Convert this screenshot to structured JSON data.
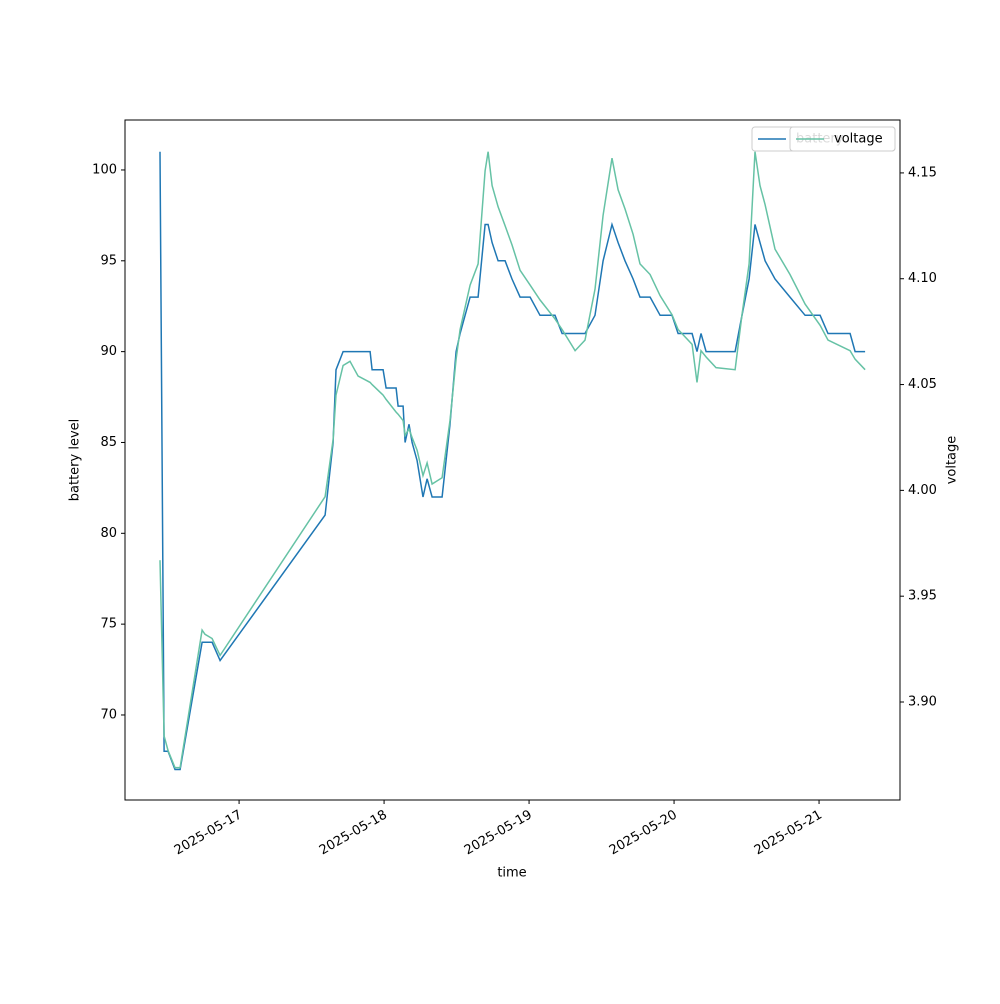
{
  "chart_data": {
    "type": "line",
    "x_label": "time",
    "y_label": "battery level",
    "y2_label": "voltage",
    "x": [
      "2025-05-16 10:55",
      "2025-05-16 11:35",
      "2025-05-16 12:15",
      "2025-05-16 13:24",
      "2025-05-16 14:14",
      "2025-05-16 17:53",
      "2025-05-16 18:22",
      "2025-05-16 19:32",
      "2025-05-16 20:51",
      "2025-05-17 14:14",
      "2025-05-17 15:34",
      "2025-05-17 16:03",
      "2025-05-17 17:13",
      "2025-05-17 18:22",
      "2025-05-17 19:42",
      "2025-05-17 21:41",
      "2025-05-17 22:01",
      "2025-05-17 23:50",
      "2025-05-18 00:20",
      "2025-05-18 01:59",
      "2025-05-18 02:19",
      "2025-05-18 03:09",
      "2025-05-18 03:29",
      "2025-05-18 04:08",
      "2025-05-18 04:38",
      "2025-05-18 05:28",
      "2025-05-18 06:27",
      "2025-05-18 07:07",
      "2025-05-18 07:57",
      "2025-05-18 09:36",
      "2025-05-18 10:55",
      "2025-05-18 11:55",
      "2025-05-18 12:35",
      "2025-05-18 14:14",
      "2025-05-18 15:34",
      "2025-05-18 16:43",
      "2025-05-18 17:13",
      "2025-05-18 17:53",
      "2025-05-18 18:52",
      "2025-05-18 20:02",
      "2025-05-18 21:11",
      "2025-05-18 22:31",
      "2025-05-19 00:10",
      "2025-05-19 01:49",
      "2025-05-19 04:18",
      "2025-05-19 05:28",
      "2025-05-19 07:37",
      "2025-05-19 09:16",
      "2025-05-19 10:55",
      "2025-05-19 12:15",
      "2025-05-19 13:44",
      "2025-05-19 14:44",
      "2025-05-19 15:53",
      "2025-05-19 17:13",
      "2025-05-19 18:22",
      "2025-05-19 20:02",
      "2025-05-19 21:41",
      "2025-05-19 23:40",
      "2025-05-20 00:40",
      "2025-05-20 02:59",
      "2025-05-20 03:48",
      "2025-05-20 04:28",
      "2025-05-20 05:18",
      "2025-05-20 06:57",
      "2025-05-20 10:06",
      "2025-05-20 11:15",
      "2025-05-20 12:25",
      "2025-05-20 13:24",
      "2025-05-20 14:14",
      "2025-05-20 15:04",
      "2025-05-20 16:43",
      "2025-05-20 19:12",
      "2025-05-20 21:41",
      "2025-05-21 00:10",
      "2025-05-21 01:29",
      "2025-05-21 05:08",
      "2025-05-21 05:58",
      "2025-05-21 07:37"
    ],
    "series": [
      {
        "name": "battery",
        "color": "#1f77b4",
        "values": [
          101,
          68,
          68,
          67,
          67,
          74,
          74,
          74,
          73,
          81,
          85,
          89,
          90,
          90,
          90,
          90,
          89,
          89,
          88,
          88,
          87,
          87,
          85,
          86,
          85,
          84,
          82,
          83,
          82,
          82,
          86,
          90,
          91,
          93,
          93,
          97,
          97,
          96,
          95,
          95,
          94,
          93,
          93,
          92,
          92,
          91,
          91,
          91,
          92,
          95,
          97,
          96,
          95,
          94,
          93,
          93,
          92,
          92,
          91,
          91,
          90,
          91,
          90,
          90,
          90,
          92,
          94,
          97,
          96,
          95,
          94,
          93,
          92,
          92,
          91,
          91,
          90,
          90
        ]
      },
      {
        "name": "voltage",
        "color": "#66c2a5",
        "axis": "y2",
        "values": [
          3.967,
          3.884,
          3.877,
          3.869,
          3.869,
          3.934,
          3.932,
          3.93,
          3.922,
          3.997,
          4.024,
          4.045,
          4.059,
          4.061,
          4.054,
          4.051,
          4.05,
          4.045,
          4.043,
          4.037,
          4.036,
          4.033,
          4.026,
          4.029,
          4.025,
          4.019,
          4.007,
          4.013,
          4.003,
          4.006,
          4.033,
          4.062,
          4.076,
          4.097,
          4.107,
          4.151,
          4.16,
          4.144,
          4.134,
          4.125,
          4.116,
          4.104,
          4.097,
          4.09,
          4.081,
          4.076,
          4.066,
          4.071,
          4.095,
          4.13,
          4.157,
          4.142,
          4.133,
          4.121,
          4.107,
          4.102,
          4.092,
          4.083,
          4.076,
          4.069,
          4.051,
          4.066,
          4.063,
          4.058,
          4.057,
          4.083,
          4.107,
          4.16,
          4.144,
          4.135,
          4.114,
          4.102,
          4.088,
          4.078,
          4.071,
          4.066,
          4.062,
          4.057
        ]
      }
    ],
    "xlim": [
      "2025-05-16 05:07",
      "2025-05-21 13:24"
    ],
    "xticks": [
      "2025-05-17",
      "2025-05-18",
      "2025-05-19",
      "2025-05-20",
      "2025-05-21"
    ],
    "ylim": [
      65.32,
      102.75
    ],
    "yticks": [
      70,
      75,
      80,
      85,
      90,
      95,
      100
    ],
    "y2lim": [
      3.8537,
      4.175
    ],
    "y2ticks": [
      {
        "value": 3.9,
        "label": "3.90"
      },
      3.95,
      {
        "value": 4.0,
        "label": "4.00"
      },
      4.05,
      {
        "value": 4.1,
        "label": "4.10"
      },
      4.15
    ],
    "legend": "upper right",
    "grid": false
  }
}
